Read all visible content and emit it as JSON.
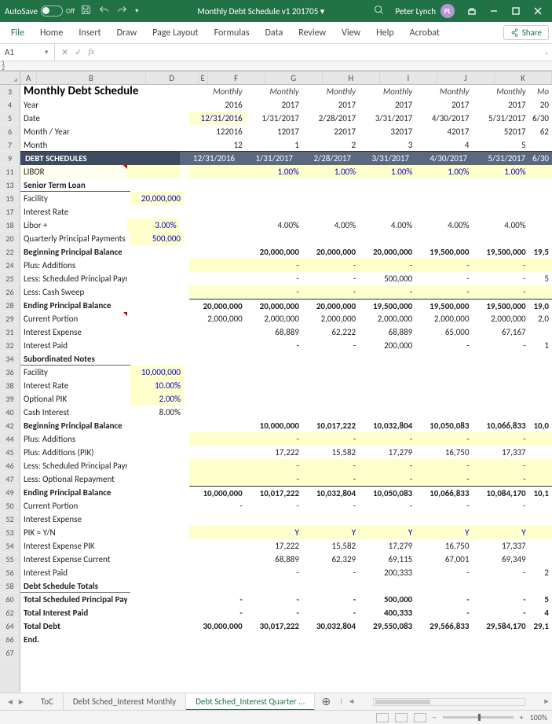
{
  "titlebar": {
    "autosave_label": "AutoSave",
    "autosave_state": "Off",
    "doc_title": "Monthly Debt Schedule v1 201705 ▾",
    "user_name": "Peter Lynch",
    "user_initials": "PL"
  },
  "ribbon": {
    "tabs": [
      "File",
      "Home",
      "Insert",
      "Draw",
      "Page Layout",
      "Formulas",
      "Data",
      "Review",
      "View",
      "Help",
      "Acrobat"
    ],
    "share": "Share"
  },
  "namebox": "A1",
  "fx_label": "fx",
  "columns": [
    "A",
    "B",
    "C",
    "D",
    "E",
    "F",
    "G",
    "H",
    "I",
    "J",
    "K"
  ],
  "col_widths": {
    "A": 0,
    "B": 140,
    "C": 0,
    "D": 68,
    "E": 12,
    "F": 74,
    "G": 74,
    "H": 74,
    "I": 74,
    "J": 74,
    "K": 74,
    "L": 30
  },
  "sheet": {
    "title": "Monthly Debt Schedule",
    "period_label": "Monthly",
    "header_rows": {
      "year": {
        "label": "Year",
        "vals": [
          "2016",
          "2017",
          "2017",
          "2017",
          "2017",
          "2017",
          "20"
        ]
      },
      "date": {
        "label": "Date",
        "vals": [
          "12/31/2016",
          "1/31/2017",
          "2/28/2017",
          "3/31/2017",
          "4/30/2017",
          "5/31/2017",
          "6/30"
        ]
      },
      "month_year": {
        "label": "Month / Year",
        "vals": [
          "122016",
          "12017",
          "22017",
          "32017",
          "42017",
          "52017",
          "62"
        ]
      },
      "month": {
        "label": "Month",
        "vals": [
          "12",
          "1",
          "2",
          "3",
          "4",
          "5",
          ""
        ]
      }
    },
    "schedules_label": "DEBT SCHEDULES",
    "schedules_dates": [
      "12/31/2016",
      "1/31/2017",
      "2/28/2017",
      "3/31/2017",
      "4/30/2017",
      "5/31/2017",
      "6/30"
    ],
    "libor": {
      "label": "LIBOR",
      "vals": [
        "",
        "1.00%",
        "1.00%",
        "1.00%",
        "1.00%",
        "1.00%",
        ""
      ]
    },
    "senior": {
      "title": "Senior Term Loan",
      "facility": {
        "label": "Facility",
        "d": "20,000,000"
      },
      "interest_rate_label": "Interest Rate",
      "libor_plus": {
        "label": "Libor +",
        "d": "3.00%",
        "row": [
          "",
          "4.00%",
          "4.00%",
          "4.00%",
          "4.00%",
          "4.00%",
          ""
        ]
      },
      "qpp": {
        "label": "Quarterly Principal Payments",
        "d": "500,000"
      },
      "beg_bal": {
        "label": "Beginning Principal Balance",
        "row": [
          "",
          "20,000,000",
          "20,000,000",
          "20,000,000",
          "19,500,000",
          "19,500,000",
          "19,5"
        ]
      },
      "plus_additions": {
        "label": "Plus: Additions",
        "row": [
          "",
          "-",
          "-",
          "-",
          "-",
          "-",
          ""
        ]
      },
      "less_sched": {
        "label": "Less: Scheduled Principal Payments",
        "row": [
          "",
          "-",
          "-",
          "500,000",
          "-",
          "-",
          "5"
        ]
      },
      "less_sweep": {
        "label": "Less: Cash Sweep",
        "row": [
          "",
          "-",
          "-",
          "-",
          "-",
          "-",
          ""
        ]
      },
      "end_bal": {
        "label": "Ending Principal Balance",
        "row": [
          "20,000,000",
          "20,000,000",
          "20,000,000",
          "19,500,000",
          "19,500,000",
          "19,500,000",
          "19,0"
        ]
      },
      "cur_portion": {
        "label": "Current Portion",
        "row": [
          "2,000,000",
          "2,000,000",
          "2,000,000",
          "2,000,000",
          "2,000,000",
          "2,000,000",
          "2,0"
        ]
      },
      "int_exp": {
        "label": "Interest Expense",
        "row": [
          "",
          "68,889",
          "62,222",
          "68,889",
          "65,000",
          "67,167",
          ""
        ]
      },
      "int_paid": {
        "label": "Interest Paid",
        "row": [
          "",
          "-",
          "-",
          "200,000",
          "-",
          "-",
          "1"
        ]
      }
    },
    "sub": {
      "title": "Subordinated Notes",
      "facility": {
        "label": "Facility",
        "d": "10,000,000"
      },
      "interest_rate": {
        "label": "Interest Rate",
        "d": "10.00%"
      },
      "opt_pik": {
        "label": "Optional PIK",
        "d": "2.00%"
      },
      "cash_int": {
        "label": "Cash Interest",
        "d": "8.00%"
      },
      "beg_bal": {
        "label": "Beginning Principal Balance",
        "row": [
          "",
          "10,000,000",
          "10,017,222",
          "10,032,804",
          "10,050,083",
          "10,066,833",
          "10,0"
        ]
      },
      "plus_additions": {
        "label": "Plus: Additions",
        "row": [
          "",
          "-",
          "-",
          "-",
          "-",
          "-",
          ""
        ]
      },
      "plus_add_pik": {
        "label": "Plus: Additions (PIK)",
        "row": [
          "",
          "17,222",
          "15,582",
          "17,279",
          "16,750",
          "17,337",
          ""
        ]
      },
      "less_sched": {
        "label": "Less: Scheduled Principal Payments",
        "row": [
          "",
          "-",
          "-",
          "-",
          "-",
          "-",
          ""
        ]
      },
      "less_opt": {
        "label": "Less: Optional Repayment",
        "row": [
          "",
          "-",
          "-",
          "-",
          "-",
          "-",
          ""
        ]
      },
      "end_bal": {
        "label": "Ending Principal Balance",
        "row": [
          "10,000,000",
          "10,017,222",
          "10,032,804",
          "10,050,083",
          "10,066,833",
          "10,084,170",
          "10,1"
        ]
      },
      "cur_portion": {
        "label": "Current Portion",
        "row": [
          "-",
          "-",
          "-",
          "-",
          "-",
          "-",
          ""
        ]
      },
      "int_exp_label": "Interest Expense",
      "pik_yn": {
        "label": "PIK = Y/N",
        "row": [
          "",
          "Y",
          "Y",
          "Y",
          "Y",
          "Y",
          ""
        ]
      },
      "int_pik": {
        "label": "Interest Expense PIK",
        "row": [
          "",
          "17,222",
          "15,582",
          "17,279",
          "16,750",
          "17,337",
          ""
        ]
      },
      "int_cur": {
        "label": "Interest Expense Current",
        "row": [
          "",
          "68,889",
          "62,329",
          "69,115",
          "67,001",
          "69,349",
          ""
        ]
      },
      "int_paid": {
        "label": "Interest Paid",
        "row": [
          "",
          "-",
          "-",
          "200,333",
          "-",
          "-",
          "2"
        ]
      }
    },
    "totals": {
      "title": "Debt Schedule Totals",
      "spp": {
        "label": "Total Scheduled Principal Payments",
        "row": [
          "-",
          "-",
          "-",
          "500,000",
          "-",
          "-",
          "5"
        ]
      },
      "tip": {
        "label": "Total Interest Paid",
        "row": [
          "-",
          "-",
          "-",
          "400,333",
          "-",
          "-",
          "4"
        ]
      },
      "td": {
        "label": "Total Debt",
        "row": [
          "30,000,000",
          "30,017,222",
          "30,032,804",
          "29,550,083",
          "29,566,833",
          "29,584,170",
          "29,1"
        ]
      }
    },
    "end_label": "End."
  },
  "row_numbers": [
    "3",
    "4",
    "5",
    "6",
    "7",
    "9",
    "11",
    "13",
    "15",
    "17",
    "18",
    "20",
    "22",
    "24",
    "25",
    "26",
    "28",
    "29",
    "31",
    "32",
    "34",
    "36",
    "38",
    "39",
    "40",
    "42",
    "44",
    "45",
    "46",
    "47",
    "49",
    "50",
    "52",
    "53",
    "54",
    "55",
    "56",
    "58",
    "60",
    "62",
    "64",
    "66",
    "67"
  ],
  "sheet_tabs": {
    "items": [
      "ToC",
      "Debt Sched_Interest Monthly",
      "Debt Sched_Interest Quarter ..."
    ],
    "active": 2
  },
  "status": {
    "zoom": "100%"
  },
  "colors": {
    "titlebar": "#217346",
    "section": "#3e4a60",
    "yellow": "#ffffcc",
    "blue": "#0000CC"
  }
}
